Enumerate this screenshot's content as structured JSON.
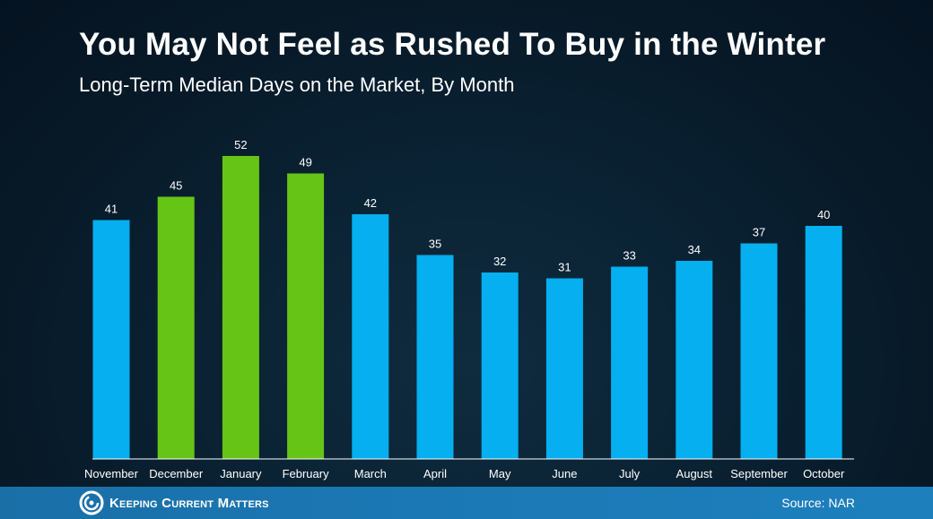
{
  "colors": {
    "winter": "#66c417",
    "other": "#05aff0",
    "text": "#ffffff",
    "axis": "#ffffff"
  },
  "chart_data": {
    "type": "bar",
    "title": "You May Not Feel as Rushed To Buy in the Winter",
    "subtitle": "Long-Term Median Days on the Market, By Month",
    "categories": [
      "November",
      "December",
      "January",
      "February",
      "March",
      "April",
      "May",
      "June",
      "July",
      "August",
      "September",
      "October"
    ],
    "values": [
      41,
      45,
      52,
      49,
      42,
      35,
      32,
      31,
      33,
      34,
      37,
      40
    ],
    "highlighted": [
      "December",
      "January",
      "February"
    ],
    "xlabel": "",
    "ylabel": "",
    "ylim": [
      0,
      52
    ],
    "grid": false,
    "legend": "none"
  },
  "footer": {
    "logo_text": "Keeping Current Matters",
    "logo_icon": "kcm-logo-icon",
    "source": "Source: NAR"
  }
}
